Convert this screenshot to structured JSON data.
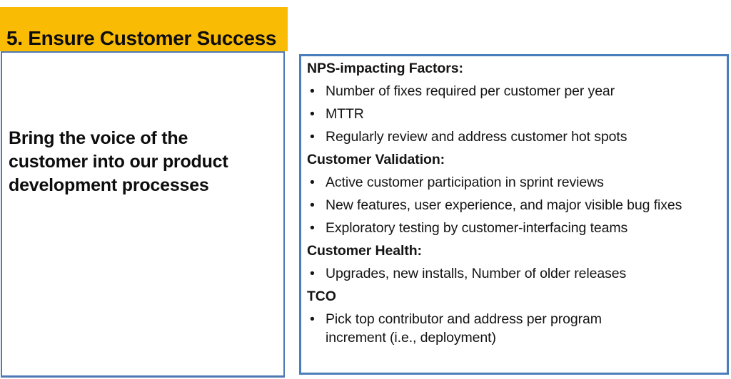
{
  "slide": {
    "background_color": "#ffffff",
    "header": {
      "title": "5. Ensure Customer Success",
      "background_color": "#FABB05",
      "text_color": "#0d0d0d"
    },
    "left_box": {
      "text": "Bring the voice of the customer into our product development processes",
      "border_color": "#4e79b5"
    },
    "right_box": {
      "border_color": "#4a7ebb",
      "bullet_glyph": "•",
      "items": [
        {
          "type": "header",
          "text": "NPS-impacting Factors:"
        },
        {
          "type": "bullet",
          "text": "Number of fixes required per customer per year"
        },
        {
          "type": "bullet",
          "text": "MTTR"
        },
        {
          "type": "bullet",
          "text": "Regularly review and address customer hot spots"
        },
        {
          "type": "header",
          "text": "Customer Validation:"
        },
        {
          "type": "bullet",
          "text": "Active customer participation in sprint reviews"
        },
        {
          "type": "bullet",
          "text": "New features, user experience, and major visible bug fixes"
        },
        {
          "type": "bullet",
          "text": "Exploratory testing by customer-interfacing teams"
        },
        {
          "type": "header",
          "text": "Customer Health:"
        },
        {
          "type": "bullet",
          "text": "Upgrades, new installs, Number of older releases"
        },
        {
          "type": "header",
          "text": "TCO"
        },
        {
          "type": "bullet",
          "text": "Pick top contributor and address per program\nincrement (i.e., deployment)"
        }
      ]
    }
  }
}
